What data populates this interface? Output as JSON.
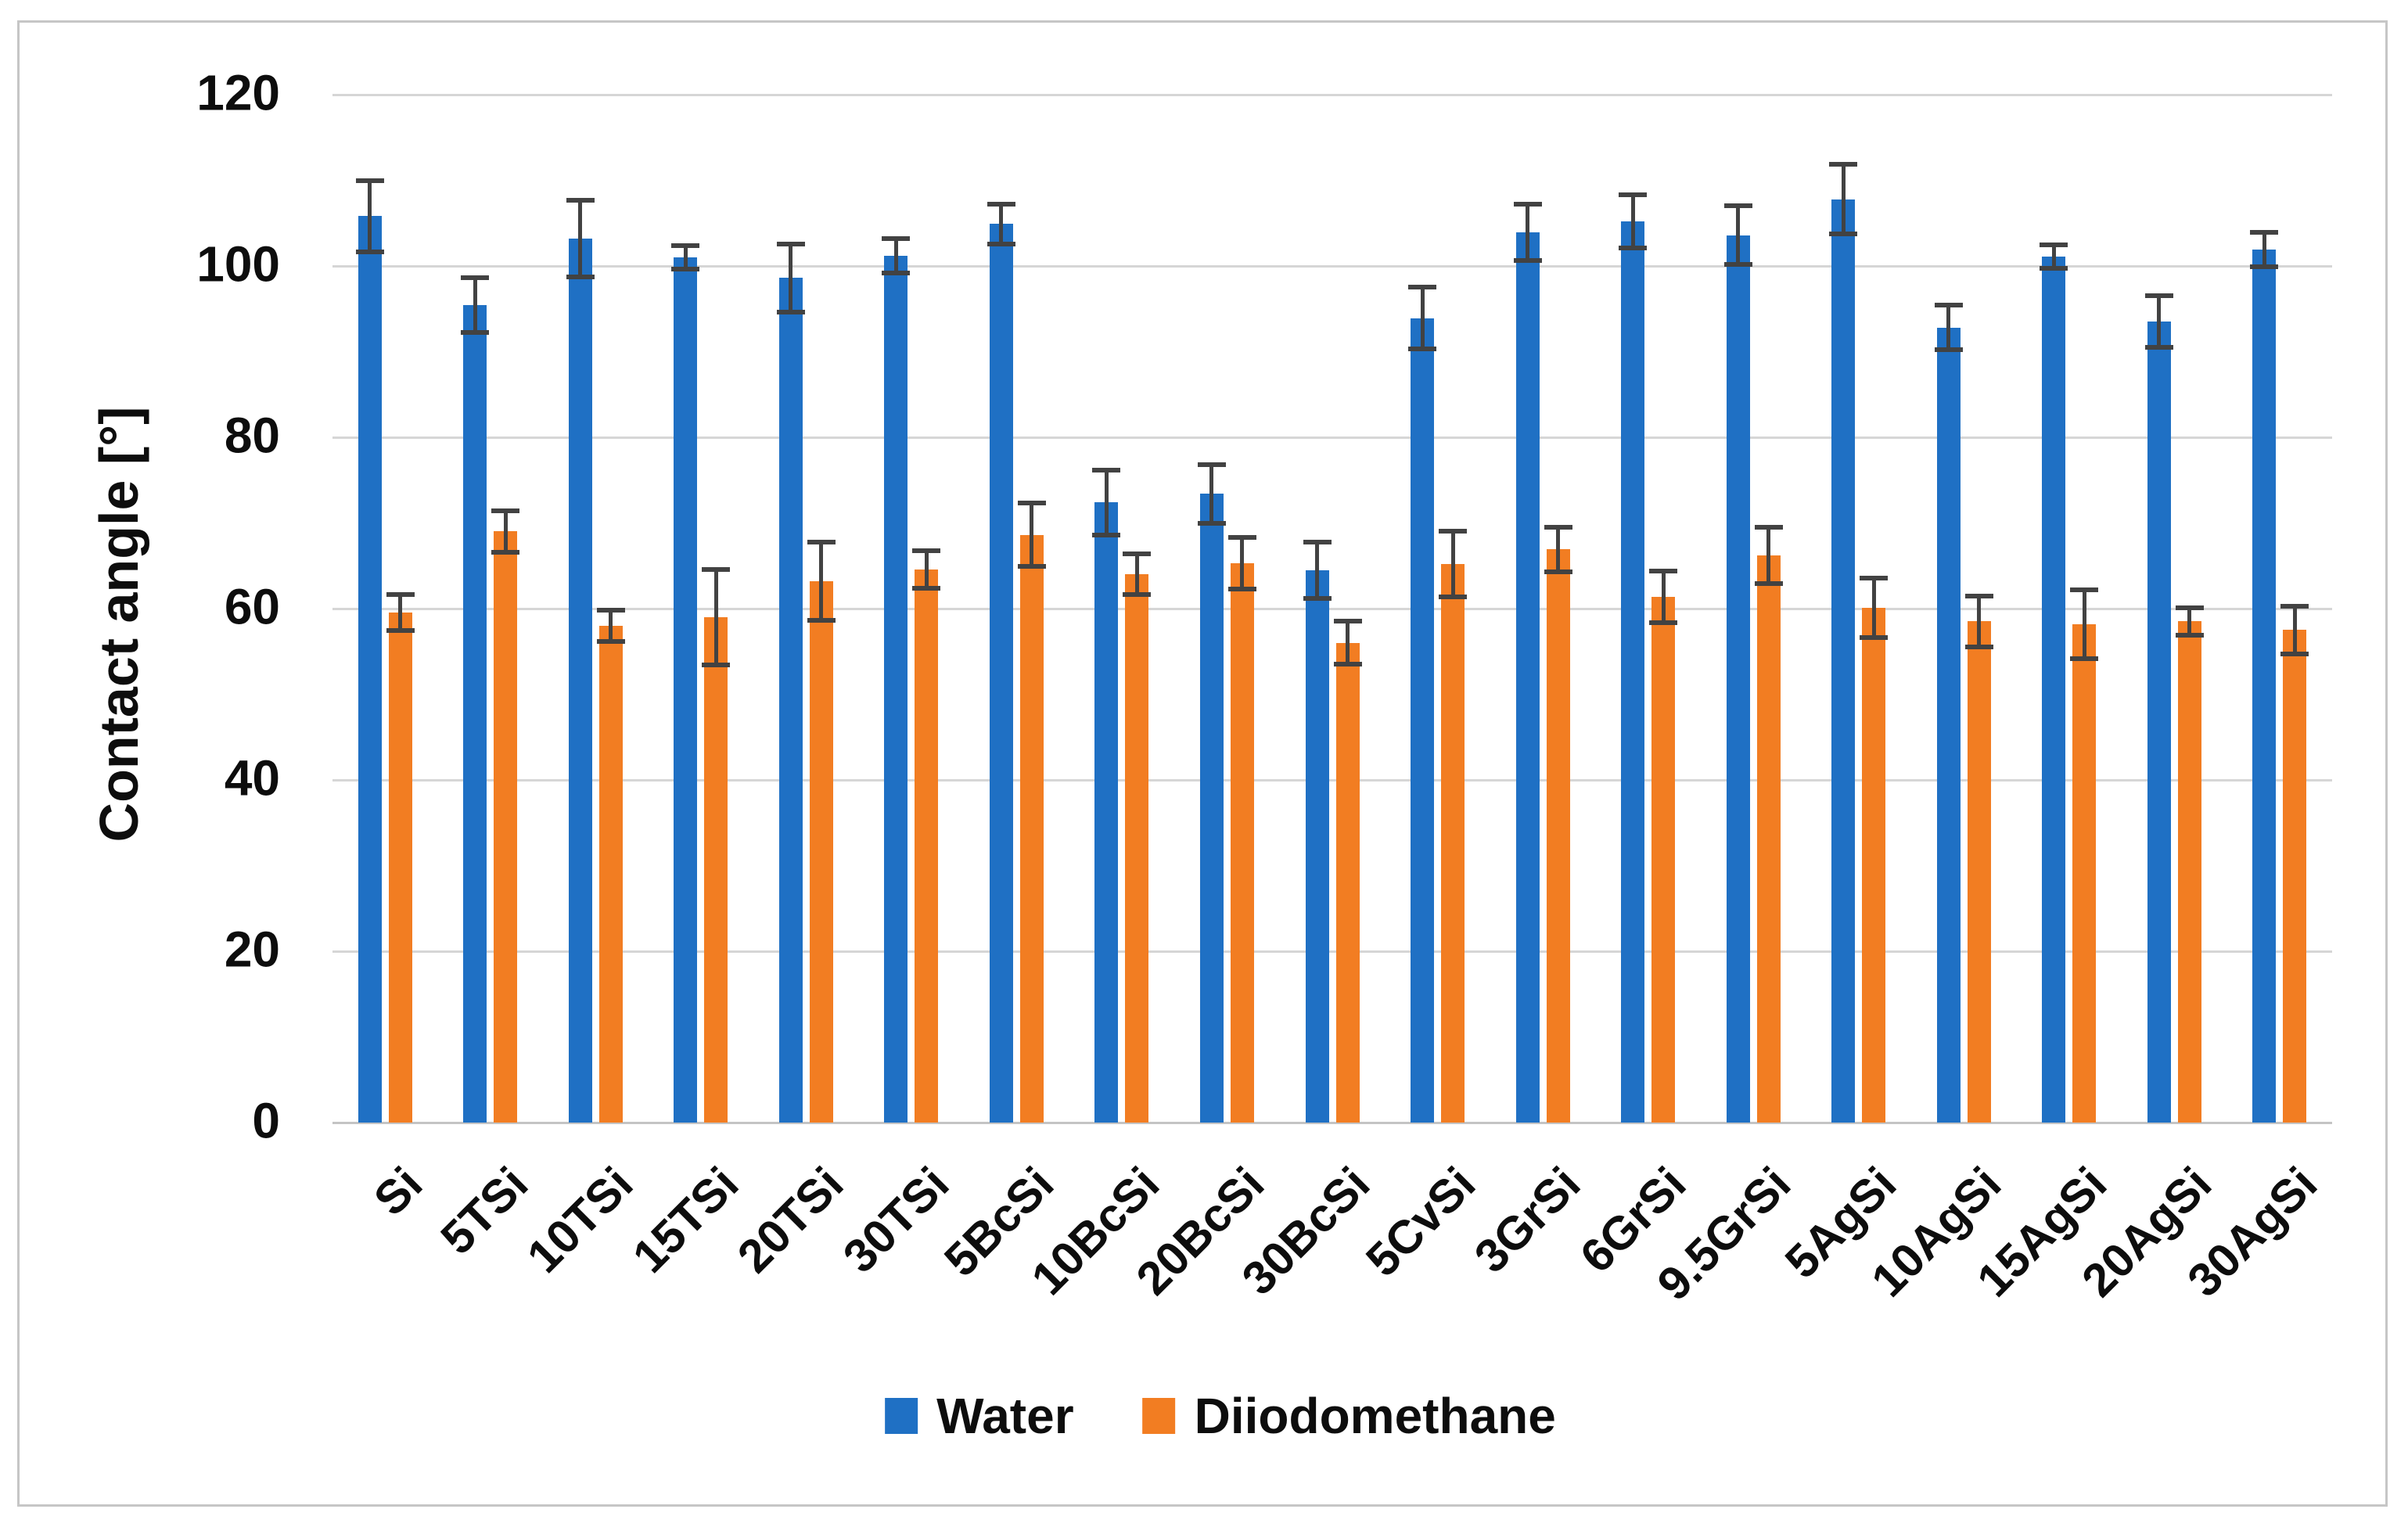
{
  "figure": {
    "y_axis_title": "Contact angle [°]"
  },
  "chart_data": {
    "type": "bar",
    "title": "",
    "xlabel": "",
    "ylabel": "Contact angle [°]",
    "ylim": [
      0,
      120
    ],
    "y_ticks": [
      0,
      20,
      40,
      60,
      80,
      100,
      120
    ],
    "grid": true,
    "legend_position": "bottom",
    "x_tick_rotation": 45,
    "error_bar_color": "#424242",
    "categories": [
      "Si",
      "5TSi",
      "10TSi",
      "15TSi",
      "20TSi",
      "30TSi",
      "5BcSi",
      "10BcSi",
      "20BcSi",
      "30BcSi",
      "5CvSi",
      "3GrSi",
      "6GrSi",
      "9.5GrSi",
      "5AgSi",
      "10AgSi",
      "15AgSi",
      "20AgSi",
      "30AgSi"
    ],
    "series": [
      {
        "name": "Water",
        "color": "#1f70c4",
        "values": [
          105.8,
          95.4,
          103.2,
          101.0,
          98.6,
          101.2,
          104.9,
          72.4,
          73.4,
          64.5,
          93.9,
          103.9,
          105.2,
          103.6,
          107.8,
          92.8,
          101.1,
          93.5,
          101.9
        ],
        "errors": [
          4.2,
          3.2,
          4.5,
          1.4,
          4.0,
          2.0,
          2.3,
          3.8,
          3.4,
          3.3,
          3.6,
          3.3,
          3.1,
          3.4,
          4.1,
          2.6,
          1.4,
          3.0,
          2.0
        ]
      },
      {
        "name": "Diiodomethane",
        "color": "#f27d22",
        "values": [
          59.5,
          69.0,
          58.0,
          59.0,
          63.2,
          64.6,
          68.6,
          64.0,
          65.3,
          56.0,
          65.2,
          66.9,
          61.4,
          66.2,
          60.1,
          58.5,
          58.2,
          58.5,
          57.5
        ],
        "errors": [
          2.1,
          2.4,
          1.8,
          5.6,
          4.6,
          2.2,
          3.7,
          2.4,
          3.0,
          2.5,
          3.8,
          2.6,
          3.0,
          3.3,
          3.5,
          3.0,
          4.0,
          1.6,
          2.8
        ]
      }
    ]
  }
}
